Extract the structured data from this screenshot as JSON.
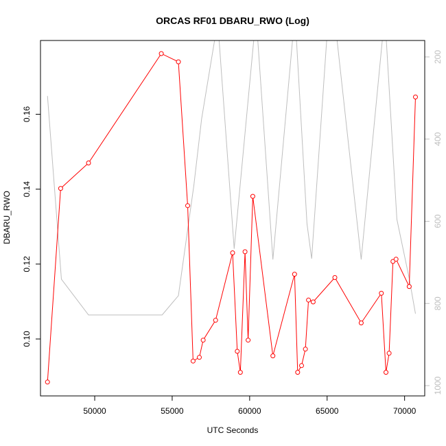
{
  "chart_data": {
    "type": "line",
    "title": "ORCAS RF01 DBARU_RWO (Log)",
    "xlabel": "UTC Seconds",
    "ylabel": "DBARU_RWO",
    "xlim": [
      46500,
      71300
    ],
    "ylim": [
      0.0848,
      0.1797
    ],
    "x_ticks": [
      50000,
      55000,
      60000,
      65000,
      70000
    ],
    "y_ticks": [
      0.1,
      0.12,
      0.14,
      0.16
    ],
    "y2_reversed": true,
    "y2lim": [
      1025,
      160
    ],
    "y2_ticks": [
      200,
      400,
      600,
      800,
      1000
    ],
    "colors": {
      "primary": "#ff0000",
      "secondary": "#bebebe",
      "axis": "#000000"
    },
    "series": [
      {
        "axis": "left",
        "marker": "open-circle",
        "x": [
          46950,
          47800,
          49600,
          54300,
          55400,
          56000,
          56350,
          56750,
          57000,
          57800,
          58900,
          59200,
          59400,
          59700,
          59900,
          60200,
          61500,
          62900,
          63100,
          63350,
          63600,
          63800,
          64100,
          65500,
          67200,
          68500,
          68800,
          69000,
          69250,
          69450,
          70300,
          70700
        ],
        "values": [
          0.0885,
          0.1402,
          0.147,
          0.1762,
          0.174,
          0.1356,
          0.0941,
          0.0951,
          0.0997,
          0.105,
          0.123,
          0.0967,
          0.0911,
          0.1233,
          0.0997,
          0.1381,
          0.0955,
          0.1173,
          0.0911,
          0.0929,
          0.0973,
          0.1104,
          0.1099,
          0.1164,
          0.1043,
          0.1122,
          0.0911,
          0.0962,
          0.1207,
          0.1213,
          0.114,
          0.1646
        ]
      },
      {
        "axis": "right",
        "marker": "none",
        "x": [
          46950,
          47850,
          49600,
          54350,
          55400,
          56400,
          56900,
          57800,
          58000,
          59000,
          60300,
          60500,
          61500,
          62800,
          63000,
          63700,
          64000,
          65000,
          65600,
          67200,
          68600,
          68800,
          69500,
          70300,
          70700
        ],
        "values": [
          295,
          741,
          828,
          828,
          781,
          513,
          351,
          145,
          145,
          667,
          145,
          145,
          693,
          145,
          145,
          606,
          691,
          145,
          145,
          693,
          145,
          145,
          595,
          739,
          825
        ]
      }
    ]
  }
}
